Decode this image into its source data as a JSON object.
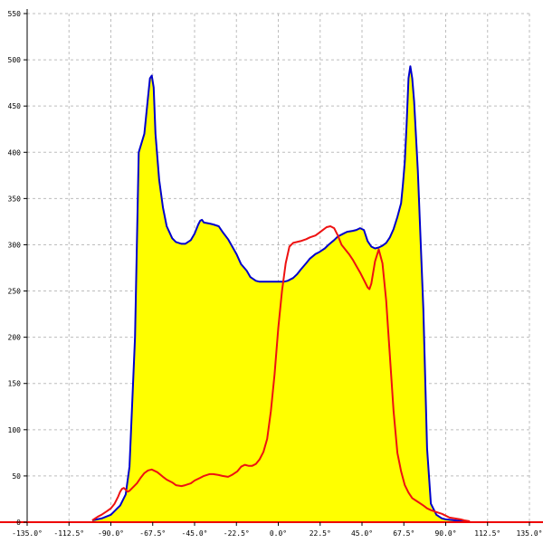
{
  "chart_data": {
    "type": "area",
    "title": "",
    "xlabel": "",
    "ylabel": "",
    "xlim": [
      -135,
      135
    ],
    "ylim": [
      0,
      550
    ],
    "grid": true,
    "x_ticks": [
      -135,
      -112.5,
      -90,
      -67.5,
      -45,
      -22.5,
      0,
      22.5,
      45,
      67.5,
      90,
      112.5,
      135
    ],
    "x_tick_labels": [
      "-135.0°",
      "-112.5°",
      "-90.0°",
      "-67.5°",
      "-45.0°",
      "-22.5°",
      "0.0°",
      "22.5°",
      "45.0°",
      "67.5°",
      "90.0°",
      "112.5°",
      "135.0°"
    ],
    "y_ticks": [
      0,
      50,
      100,
      150,
      200,
      250,
      300,
      350,
      400,
      450,
      500,
      550
    ],
    "y_tick_labels": [
      "0",
      "50",
      "100",
      "150",
      "200",
      "250",
      "300",
      "350",
      "400",
      "450",
      "500",
      "550"
    ],
    "colors": {
      "area_fill": "#ffff00",
      "blue_line": "#0000cc",
      "red_line": "#ee1111",
      "axis": "#000000",
      "baseline": "#ee0000",
      "grid": "#bdbdbd"
    },
    "series": [
      {
        "color": "#0000cc",
        "filled": true,
        "x": [
          -100,
          -95,
          -90,
          -85,
          -82,
          -80,
          -77,
          -75,
          -72,
          -70,
          -69,
          -68,
          -67,
          -66,
          -64,
          -62,
          -60,
          -57,
          -55,
          -52,
          -50,
          -47,
          -45,
          -43,
          -42,
          -41,
          -40,
          -37,
          -35,
          -32,
          -30,
          -27,
          -25,
          -22.5,
          -20,
          -17,
          -15,
          -12,
          -10,
          -7,
          -5,
          -2,
          0,
          3,
          5,
          8,
          10,
          12,
          15,
          17,
          20,
          22,
          25,
          27,
          30,
          32,
          35,
          37,
          40,
          42,
          44,
          46,
          48,
          50,
          52,
          54,
          56,
          58,
          60,
          62,
          64,
          66,
          67,
          68,
          69,
          70,
          71,
          72,
          73,
          75,
          78,
          80,
          82,
          85,
          88,
          90,
          95,
          100
        ],
        "y": [
          2,
          4,
          8,
          18,
          30,
          60,
          200,
          400,
          420,
          460,
          480,
          483,
          470,
          420,
          370,
          340,
          320,
          307,
          303,
          301,
          301,
          305,
          312,
          322,
          326,
          327,
          324,
          323,
          322,
          320,
          314,
          306,
          299,
          290,
          279,
          272,
          265,
          261,
          260,
          260,
          260,
          260,
          260,
          260,
          261,
          264,
          268,
          273,
          280,
          285,
          290,
          292,
          296,
          300,
          305,
          309,
          312,
          314,
          315,
          316,
          318,
          316,
          304,
          298,
          296,
          297,
          299,
          302,
          308,
          317,
          330,
          345,
          365,
          390,
          430,
          480,
          493,
          480,
          455,
          380,
          230,
          80,
          20,
          8,
          4,
          3,
          2,
          1
        ]
      },
      {
        "color": "#ee1111",
        "filled": false,
        "x": [
          -100,
          -97,
          -95,
          -92,
          -90,
          -88,
          -86,
          -85,
          -84,
          -83,
          -82,
          -81,
          -80,
          -78,
          -76,
          -74,
          -72,
          -70,
          -68,
          -67,
          -65,
          -62,
          -60,
          -57,
          -55,
          -52,
          -50,
          -47,
          -45,
          -42,
          -40,
          -37,
          -35,
          -32,
          -30,
          -27,
          -25,
          -22,
          -20,
          -18,
          -16,
          -14,
          -12,
          -10,
          -8,
          -6,
          -4,
          -2,
          0,
          2,
          4,
          6,
          8,
          10,
          12,
          15,
          17,
          20,
          22,
          24,
          26,
          28,
          30,
          32,
          34,
          36,
          38,
          40,
          42,
          44,
          46,
          48,
          49,
          50,
          52,
          54,
          56,
          58,
          60,
          62,
          64,
          66,
          68,
          70,
          72,
          75,
          78,
          80,
          82,
          85,
          88,
          90,
          92,
          95,
          98,
          100,
          103
        ],
        "y": [
          2,
          6,
          8,
          12,
          15,
          20,
          28,
          33,
          36,
          37,
          35,
          33,
          34,
          38,
          42,
          48,
          53,
          56,
          57,
          56,
          54,
          49,
          46,
          43,
          40,
          39,
          40,
          42,
          45,
          48,
          50,
          52,
          52,
          51,
          50,
          49,
          51,
          55,
          60,
          62,
          61,
          61,
          63,
          68,
          76,
          90,
          120,
          160,
          210,
          250,
          280,
          298,
          302,
          303,
          304,
          306,
          308,
          310,
          313,
          316,
          319,
          320,
          318,
          310,
          300,
          295,
          290,
          284,
          277,
          270,
          262,
          254,
          252,
          258,
          282,
          295,
          280,
          240,
          180,
          120,
          75,
          55,
          40,
          32,
          26,
          22,
          18,
          15,
          13,
          11,
          9,
          7,
          5,
          4,
          3,
          2,
          1
        ]
      }
    ]
  }
}
